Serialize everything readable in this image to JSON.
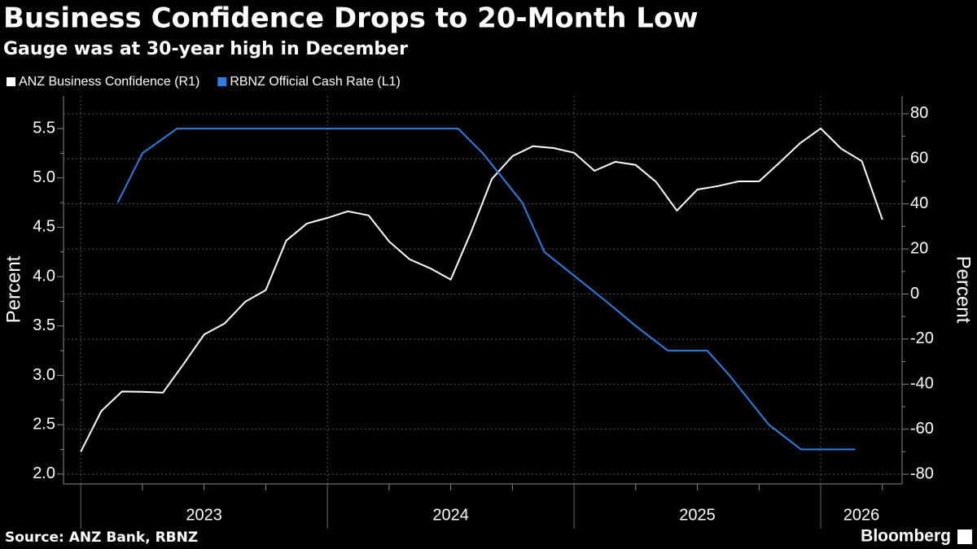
{
  "chart_data": {
    "type": "line",
    "title": "Business Confidence Drops to 20-Month Low",
    "subtitle": "Gauge was at 30-year high in December",
    "source": "Source: ANZ Bank, RBNZ",
    "brand": "Bloomberg",
    "y_label": "Percent",
    "y2_label": "Percent",
    "background": "#000000",
    "grid": true,
    "xlim": [
      2022.93,
      2026.33
    ],
    "xticks": [
      2023,
      2024,
      2025,
      2026
    ],
    "ylim": [
      1.9,
      5.83
    ],
    "yticks": [
      {
        "value": 2,
        "label": "2.0"
      },
      2.5,
      {
        "value": 3,
        "label": "3.0"
      },
      3.5,
      {
        "value": 4,
        "label": "4.0"
      },
      4.5,
      {
        "value": 5,
        "label": "5.0"
      },
      5.5
    ],
    "y2lim": [
      -84.3,
      87.9
    ],
    "y2ticks": [
      -80,
      -60,
      -40,
      -20,
      0,
      20,
      40,
      60,
      80
    ],
    "series": [
      {
        "name": "ANZ Business Confidence (R1)",
        "color": "#ffffff",
        "axis": "y2",
        "x": [
          2023.0,
          2023.083,
          2023.167,
          2023.25,
          2023.333,
          2023.417,
          2023.5,
          2023.583,
          2023.667,
          2023.75,
          2023.833,
          2023.917,
          2024.0,
          2024.083,
          2024.167,
          2024.25,
          2024.333,
          2024.417,
          2024.5,
          2024.583,
          2024.667,
          2024.75,
          2024.833,
          2024.917,
          2025.0,
          2025.083,
          2025.167,
          2025.25,
          2025.333,
          2025.417,
          2025.5,
          2025.583,
          2025.667,
          2025.75,
          2025.833,
          2025.917,
          2026.0,
          2026.083,
          2026.167,
          2026.25
        ],
        "values": [
          -70,
          -52,
          -43.3,
          -43.4,
          -43.8,
          -31.1,
          -18,
          -13.1,
          -3.4,
          1.7,
          23.7,
          31.3,
          33.8,
          36.7,
          34.9,
          23.3,
          15.4,
          11.4,
          6.4,
          27.7,
          51.1,
          61.2,
          65.6,
          64.8,
          62.7,
          54.7,
          58.7,
          57.3,
          49.7,
          37,
          46.4,
          47.9,
          50,
          50,
          58.3,
          67,
          73.5,
          64.5,
          59,
          33
        ]
      },
      {
        "name": "RBNZ Official Cash Rate (L1)",
        "color": "#2f7ee0",
        "axis": "y",
        "x": [
          2023.15,
          2023.25,
          2023.39,
          2024.53,
          2024.63,
          2024.79,
          2024.88,
          2025.13,
          2025.25,
          2025.38,
          2025.54,
          2025.63,
          2025.79,
          2025.92,
          2026.14
        ],
        "values": [
          4.75,
          5.25,
          5.5,
          5.5,
          5.25,
          4.75,
          4.25,
          3.75,
          3.5,
          3.25,
          3.25,
          3.0,
          2.5,
          2.25,
          2.25
        ]
      }
    ]
  }
}
